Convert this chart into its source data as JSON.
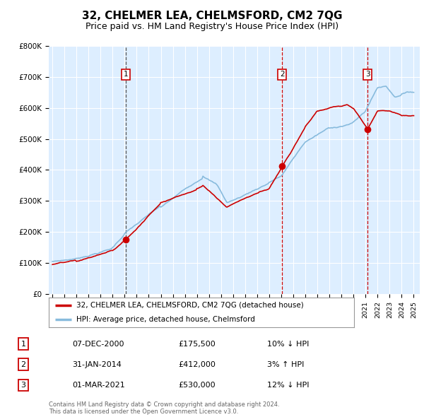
{
  "title": "32, CHELMER LEA, CHELMSFORD, CM2 7QG",
  "subtitle": "Price paid vs. HM Land Registry's House Price Index (HPI)",
  "title_fontsize": 11,
  "subtitle_fontsize": 9,
  "background_color": "#ffffff",
  "plot_bg_color": "#ddeeff",
  "grid_color": "#ffffff",
  "red_color": "#cc0000",
  "blue_color": "#88bbdd",
  "transaction_markers": [
    {
      "year": 2001.08,
      "price": 175500,
      "label": "1",
      "vline": "#555555",
      "vline_style": "--"
    },
    {
      "year": 2014.08,
      "price": 412000,
      "label": "2",
      "vline": "#cc0000",
      "vline_style": "--"
    },
    {
      "year": 2021.17,
      "price": 530000,
      "label": "3",
      "vline": "#cc0000",
      "vline_style": "--"
    }
  ],
  "legend_entries": [
    "32, CHELMER LEA, CHELMSFORD, CM2 7QG (detached house)",
    "HPI: Average price, detached house, Chelmsford"
  ],
  "table_data": [
    [
      "1",
      "07-DEC-2000",
      "£175,500",
      "10% ↓ HPI"
    ],
    [
      "2",
      "31-JAN-2014",
      "£412,000",
      "3% ↑ HPI"
    ],
    [
      "3",
      "01-MAR-2021",
      "£530,000",
      "12% ↓ HPI"
    ]
  ],
  "footer": "Contains HM Land Registry data © Crown copyright and database right 2024.\nThis data is licensed under the Open Government Licence v3.0.",
  "ylim": [
    0,
    800000
  ],
  "xlim_start": 1994.7,
  "xlim_end": 2025.5
}
